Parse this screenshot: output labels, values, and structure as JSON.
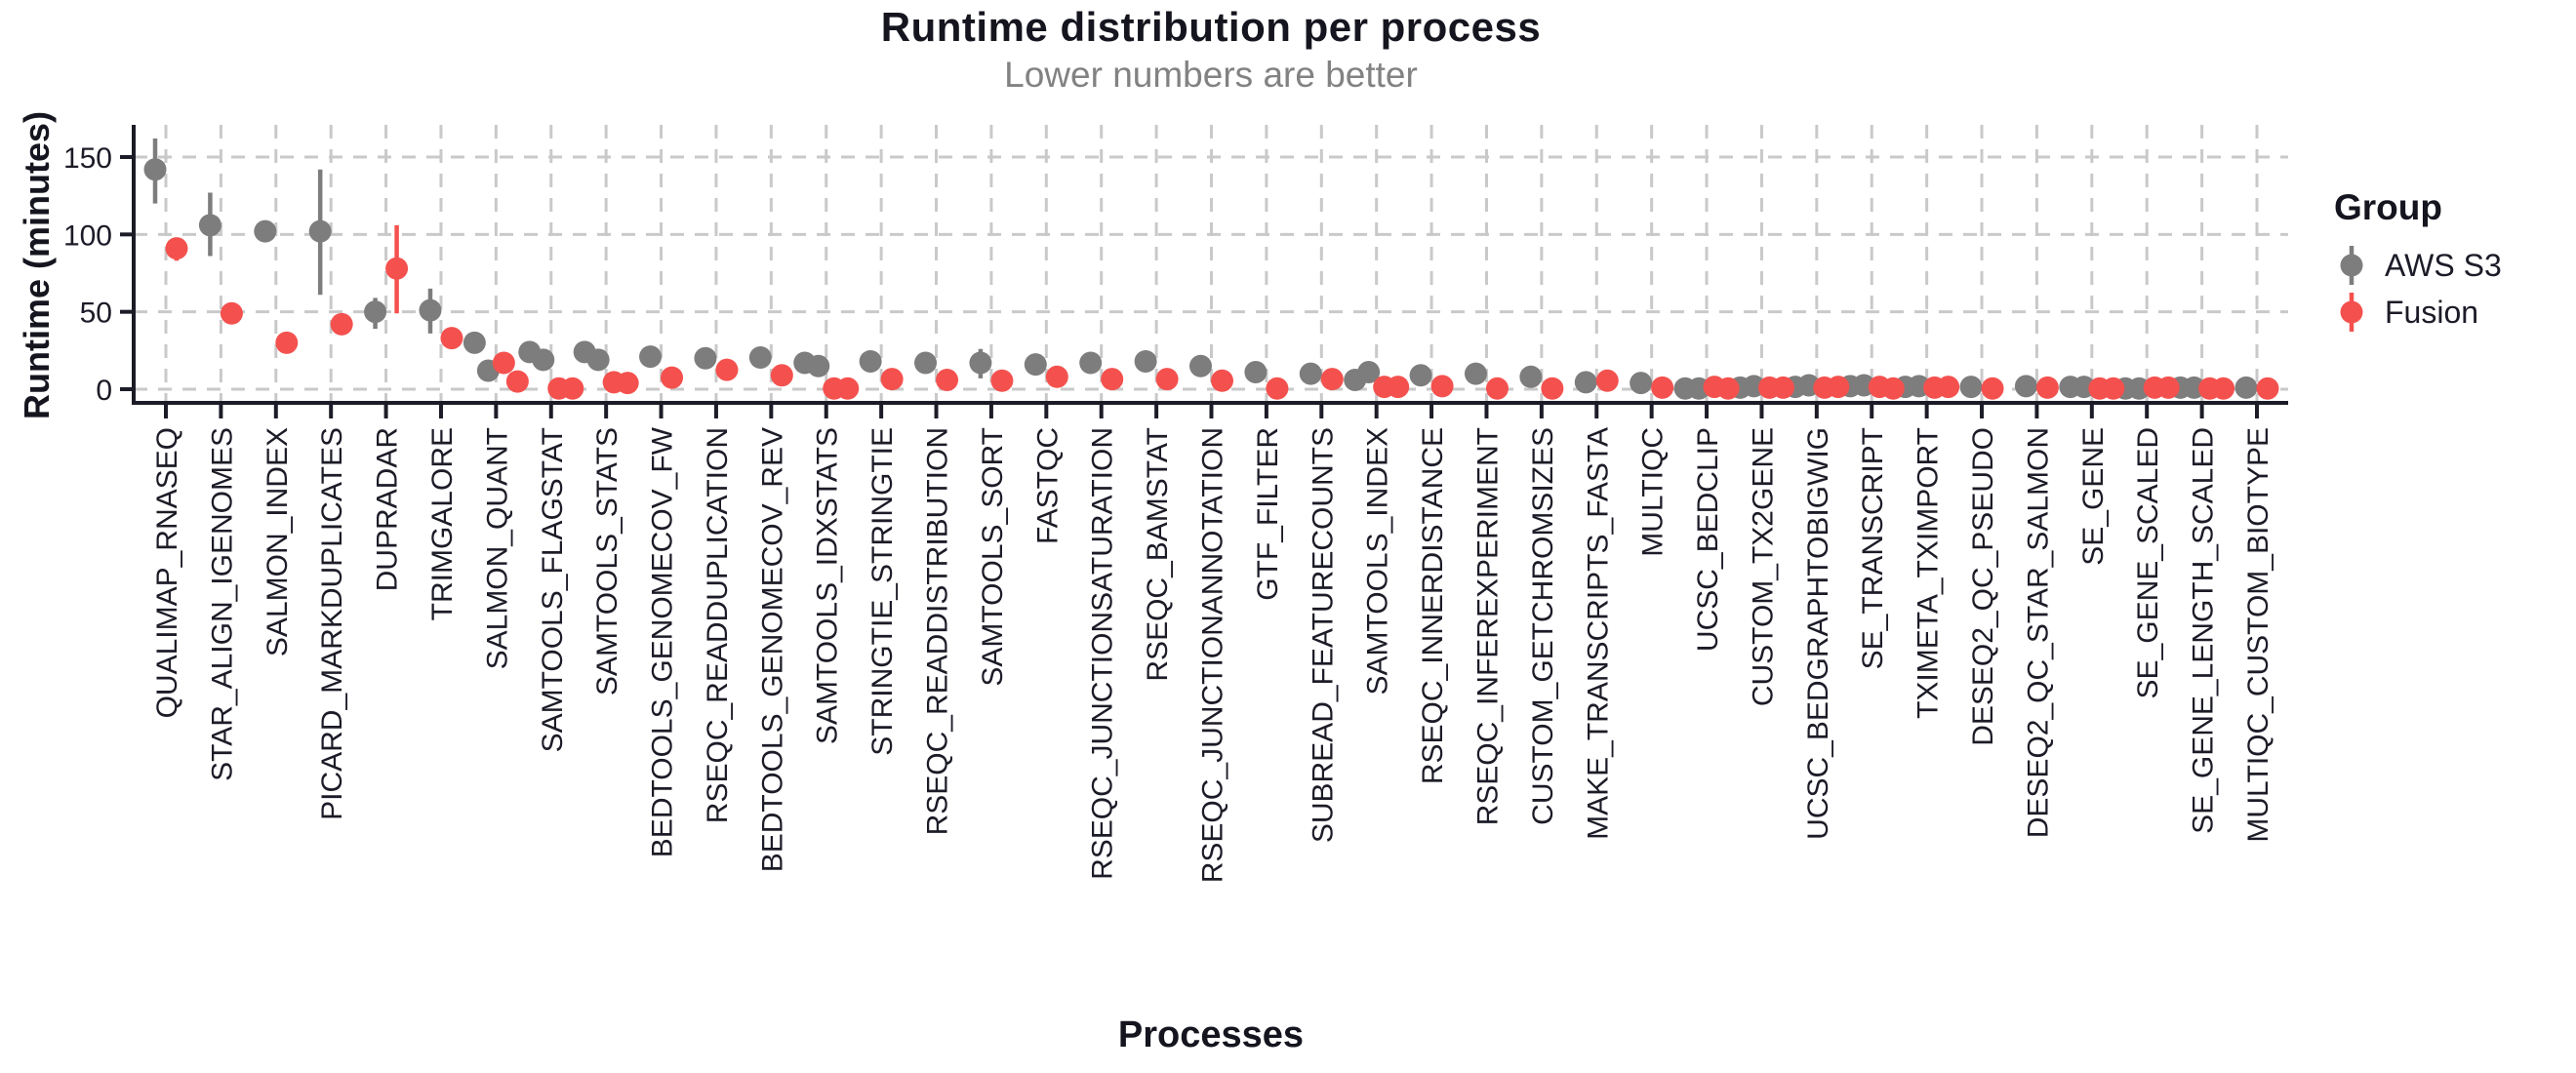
{
  "title": "Runtime distribution per process",
  "subtitle": "Lower numbers are better",
  "colors": {
    "aws_s3": "#7d7d7d",
    "fusion": "#f4514e",
    "grid": "#c9c9c9",
    "axis_line": "#1c1c28",
    "tick_text": "#1c1c28",
    "title_text": "#15151f",
    "subtitle_text": "#828282"
  },
  "legend": {
    "title": "Group",
    "items": [
      {
        "id": "aws_s3",
        "label": "AWS S3",
        "color": "#7d7d7d"
      },
      {
        "id": "fusion",
        "label": "Fusion",
        "color": "#f4514e"
      }
    ]
  },
  "chart_data": {
    "type": "scatter",
    "title": "Runtime distribution per process",
    "subtitle": "Lower numbers are better",
    "xlabel": "Processes",
    "ylabel": "Runtime (minutes)",
    "yticks": [
      0,
      50,
      100,
      150
    ],
    "ylim": [
      -9,
      172
    ],
    "grid": "dashed-both-axes",
    "legend_position": "right",
    "groups": [
      "AWS S3",
      "Fusion"
    ],
    "point_style": "pointrange-dodged",
    "categories": [
      {
        "process": "QUALIMAP_RNASEQ",
        "aws_s3": {
          "values": [
            142
          ],
          "range": [
            120,
            162
          ]
        },
        "fusion": {
          "values": [
            91
          ],
          "range": [
            83,
            96
          ]
        }
      },
      {
        "process": "STAR_ALIGN_IGENOMES",
        "aws_s3": {
          "values": [
            106
          ],
          "range": [
            86,
            127
          ]
        },
        "fusion": {
          "values": [
            49
          ]
        }
      },
      {
        "process": "SALMON_INDEX",
        "aws_s3": {
          "values": [
            102
          ]
        },
        "fusion": {
          "values": [
            30
          ]
        }
      },
      {
        "process": "PICARD_MARKDUPLICATES",
        "aws_s3": {
          "values": [
            102
          ],
          "range": [
            61,
            142
          ]
        },
        "fusion": {
          "values": [
            42
          ]
        }
      },
      {
        "process": "DUPRADAR",
        "aws_s3": {
          "values": [
            50
          ],
          "range": [
            39,
            59
          ]
        },
        "fusion": {
          "values": [
            78
          ],
          "range": [
            49,
            106
          ]
        }
      },
      {
        "process": "TRIMGALORE",
        "aws_s3": {
          "values": [
            51
          ],
          "range": [
            36,
            65
          ]
        },
        "fusion": {
          "values": [
            33
          ]
        }
      },
      {
        "process": "SALMON_QUANT",
        "aws_s3": {
          "values": [
            30,
            12
          ]
        },
        "fusion": {
          "values": [
            17,
            5
          ]
        }
      },
      {
        "process": "SAMTOOLS_FLAGSTAT",
        "aws_s3": {
          "values": [
            24,
            19
          ]
        },
        "fusion": {
          "values": [
            0.5,
            0.5
          ]
        }
      },
      {
        "process": "SAMTOOLS_STATS",
        "aws_s3": {
          "values": [
            24,
            19
          ]
        },
        "fusion": {
          "values": [
            4.5,
            4
          ]
        }
      },
      {
        "process": "BEDTOOLS_GENOMECOV_FW",
        "aws_s3": {
          "values": [
            21
          ]
        },
        "fusion": {
          "values": [
            7.5
          ]
        }
      },
      {
        "process": "RSEQC_READDUPLICATION",
        "aws_s3": {
          "values": [
            20
          ]
        },
        "fusion": {
          "values": [
            12.5
          ]
        }
      },
      {
        "process": "BEDTOOLS_GENOMECOV_REV",
        "aws_s3": {
          "values": [
            20.5
          ]
        },
        "fusion": {
          "values": [
            9
          ]
        }
      },
      {
        "process": "SAMTOOLS_IDXSTATS",
        "aws_s3": {
          "values": [
            17,
            15
          ]
        },
        "fusion": {
          "values": [
            0.5,
            0.5
          ]
        }
      },
      {
        "process": "STRINGTIE_STRINGTIE",
        "aws_s3": {
          "values": [
            18
          ]
        },
        "fusion": {
          "values": [
            6.5
          ]
        }
      },
      {
        "process": "RSEQC_READDISTRIBUTION",
        "aws_s3": {
          "values": [
            17
          ]
        },
        "fusion": {
          "values": [
            6
          ]
        }
      },
      {
        "process": "SAMTOOLS_SORT",
        "aws_s3": {
          "values": [
            17
          ],
          "range": [
            7,
            26
          ]
        },
        "fusion": {
          "values": [
            5.5
          ]
        }
      },
      {
        "process": "FASTQC",
        "aws_s3": {
          "values": [
            16
          ]
        },
        "fusion": {
          "values": [
            8
          ]
        }
      },
      {
        "process": "RSEQC_JUNCTIONSATURATION",
        "aws_s3": {
          "values": [
            17
          ]
        },
        "fusion": {
          "values": [
            6.5
          ]
        }
      },
      {
        "process": "RSEQC_BAMSTAT",
        "aws_s3": {
          "values": [
            18
          ]
        },
        "fusion": {
          "values": [
            6.5
          ]
        }
      },
      {
        "process": "RSEQC_JUNCTIONANNOTATION",
        "aws_s3": {
          "values": [
            15
          ]
        },
        "fusion": {
          "values": [
            5.5
          ]
        }
      },
      {
        "process": "GTF_FILTER",
        "aws_s3": {
          "values": [
            11
          ]
        },
        "fusion": {
          "values": [
            0.5
          ]
        }
      },
      {
        "process": "SUBREAD_FEATURECOUNTS",
        "aws_s3": {
          "values": [
            10
          ]
        },
        "fusion": {
          "values": [
            6.5
          ]
        }
      },
      {
        "process": "SAMTOOLS_INDEX",
        "aws_s3": {
          "values": [
            6,
            11
          ]
        },
        "fusion": {
          "values": [
            1.5,
            1.5
          ]
        }
      },
      {
        "process": "RSEQC_INNERDISTANCE",
        "aws_s3": {
          "values": [
            9
          ]
        },
        "fusion": {
          "values": [
            2
          ]
        }
      },
      {
        "process": "RSEQC_INFEREXPERIMENT",
        "aws_s3": {
          "values": [
            10
          ]
        },
        "fusion": {
          "values": [
            0.5
          ]
        }
      },
      {
        "process": "CUSTOM_GETCHROMSIZES",
        "aws_s3": {
          "values": [
            8
          ]
        },
        "fusion": {
          "values": [
            0.5
          ]
        }
      },
      {
        "process": "MAKE_TRANSCRIPTS_FASTA",
        "aws_s3": {
          "values": [
            4.5
          ]
        },
        "fusion": {
          "values": [
            5.5
          ]
        }
      },
      {
        "process": "MULTIQC",
        "aws_s3": {
          "values": [
            4
          ]
        },
        "fusion": {
          "values": [
            1
          ]
        }
      },
      {
        "process": "UCSC_BEDCLIP",
        "aws_s3": {
          "values": [
            0.5,
            0.5
          ]
        },
        "fusion": {
          "values": [
            1.5,
            0.5
          ]
        }
      },
      {
        "process": "CUSTOM_TX2GENE",
        "aws_s3": {
          "values": [
            1,
            2
          ]
        },
        "fusion": {
          "values": [
            1,
            1
          ]
        }
      },
      {
        "process": "UCSC_BEDGRAPHTOBIGWIG",
        "aws_s3": {
          "values": [
            1.5,
            2.5
          ]
        },
        "fusion": {
          "values": [
            1,
            1.5
          ]
        }
      },
      {
        "process": "SE_TRANSCRIPT",
        "aws_s3": {
          "values": [
            2,
            2.5
          ]
        },
        "fusion": {
          "values": [
            1.5,
            0.5
          ]
        }
      },
      {
        "process": "TXIMETA_TXIMPORT",
        "aws_s3": {
          "values": [
            1.5,
            2
          ]
        },
        "fusion": {
          "values": [
            1,
            1.5
          ]
        }
      },
      {
        "process": "DESEQ2_QC_PSEUDO",
        "aws_s3": {
          "values": [
            1.5
          ]
        },
        "fusion": {
          "values": [
            0.5
          ]
        }
      },
      {
        "process": "DESEQ2_QC_STAR_SALMON",
        "aws_s3": {
          "values": [
            2
          ]
        },
        "fusion": {
          "values": [
            1
          ]
        }
      },
      {
        "process": "SE_GENE",
        "aws_s3": {
          "values": [
            1.5,
            1.5
          ]
        },
        "fusion": {
          "values": [
            0.5,
            0.5
          ]
        }
      },
      {
        "process": "SE_GENE_SCALED",
        "aws_s3": {
          "values": [
            0.5,
            0.5
          ]
        },
        "fusion": {
          "values": [
            1,
            1
          ]
        }
      },
      {
        "process": "SE_GENE_LENGTH_SCALED",
        "aws_s3": {
          "values": [
            1,
            1
          ]
        },
        "fusion": {
          "values": [
            0.5,
            0.5
          ]
        }
      },
      {
        "process": "MULTIQC_CUSTOM_BIOTYPE",
        "aws_s3": {
          "values": [
            1
          ]
        },
        "fusion": {
          "values": [
            0.5
          ]
        }
      }
    ]
  }
}
